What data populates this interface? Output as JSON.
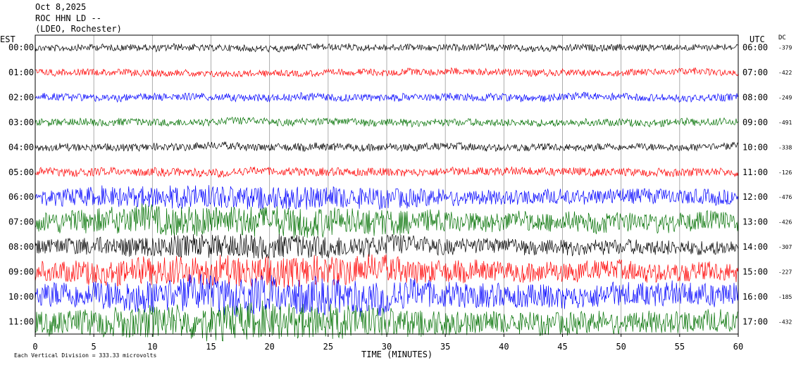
{
  "header": {
    "date": "Oct 8,2025",
    "station": "ROC HHN LD --",
    "network": "(LDEO, Rochester)"
  },
  "left_axis_title": "EST",
  "right_axis_title": "UTC",
  "dc_title": "DC",
  "footer_note": "Each Vertical Division = 333.33 microvolts",
  "chart_data": {
    "type": "line",
    "title": "",
    "xlabel": "TIME (MINUTES)",
    "ylabel": "",
    "xlim": [
      0,
      60
    ],
    "x_ticks": [
      0,
      5,
      10,
      15,
      20,
      25,
      30,
      35,
      40,
      45,
      50,
      55,
      60
    ],
    "grid": "vertical lines every 5 minutes",
    "legend": "none",
    "trace_colors": [
      "#000000",
      "#ff0000",
      "#0000ff",
      "#007000"
    ],
    "series": [
      {
        "est": "00:00",
        "utc": "06:00",
        "dc": "-379",
        "color": "#000000",
        "amplitude": 0.45
      },
      {
        "est": "01:00",
        "utc": "07:00",
        "dc": "-422",
        "color": "#ff0000",
        "amplitude": 0.45
      },
      {
        "est": "02:00",
        "utc": "08:00",
        "dc": "-249",
        "color": "#0000ff",
        "amplitude": 0.5
      },
      {
        "est": "03:00",
        "utc": "09:00",
        "dc": "-491",
        "color": "#007000",
        "amplitude": 0.5
      },
      {
        "est": "04:00",
        "utc": "10:00",
        "dc": "-338",
        "color": "#000000",
        "amplitude": 0.5
      },
      {
        "est": "05:00",
        "utc": "11:00",
        "dc": "-126",
        "color": "#ff0000",
        "amplitude": 0.55
      },
      {
        "est": "06:00",
        "utc": "12:00",
        "dc": "-476",
        "color": "#0000ff",
        "amplitude": 1.0
      },
      {
        "est": "07:00",
        "utc": "13:00",
        "dc": "-426",
        "color": "#007000",
        "amplitude": 1.3
      },
      {
        "est": "08:00",
        "utc": "14:00",
        "dc": "-307",
        "color": "#000000",
        "amplitude": 1.0
      },
      {
        "est": "09:00",
        "utc": "15:00",
        "dc": "-227",
        "color": "#ff0000",
        "amplitude": 1.3
      },
      {
        "est": "10:00",
        "utc": "16:00",
        "dc": "-185",
        "color": "#0000ff",
        "amplitude": 1.6
      },
      {
        "est": "11:00",
        "utc": "17:00",
        "dc": "-432",
        "color": "#007000",
        "amplitude": 1.5
      }
    ]
  }
}
